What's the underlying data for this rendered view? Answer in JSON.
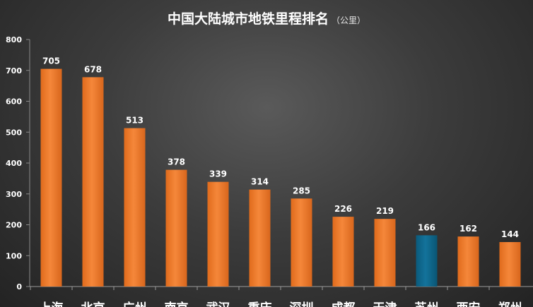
{
  "chart_data": {
    "type": "bar",
    "title": "中国大陆城市地铁里程排名",
    "subtitle": "（公里）",
    "categories": [
      "上海",
      "北京",
      "广州",
      "南京",
      "武汉",
      "重庆",
      "深圳",
      "成都",
      "天津",
      "苏州",
      "西安",
      "郑州"
    ],
    "values": [
      705,
      678,
      513,
      378,
      339,
      314,
      285,
      226,
      219,
      166,
      162,
      144
    ],
    "ylim": [
      0,
      800
    ],
    "yticks": [
      "0",
      "100",
      "200",
      "300",
      "400",
      "500",
      "600",
      "700",
      "800"
    ],
    "grid": false,
    "legend": "none",
    "colors": {
      "bar": "#f0802e",
      "highlight": "#0f6a90",
      "highlight_category": "苏州"
    }
  }
}
